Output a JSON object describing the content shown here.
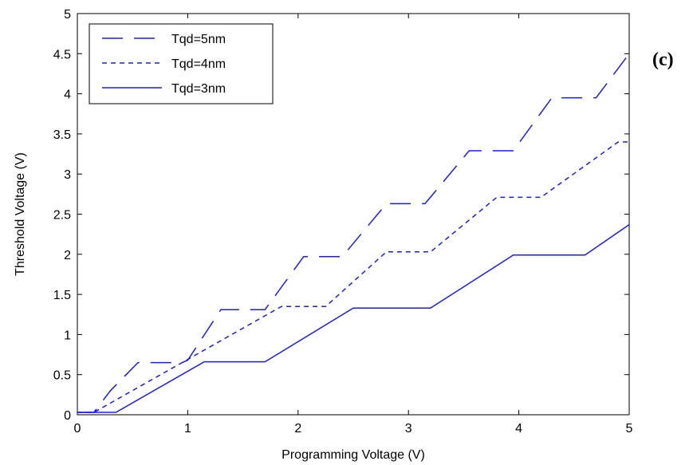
{
  "panel_label": "(c)",
  "chart_data": {
    "type": "line",
    "title": "",
    "xlabel": "Programming Voltage (V)",
    "ylabel": "Threshold Voltage (V)",
    "xlim": [
      0,
      5
    ],
    "ylim": [
      0,
      5
    ],
    "xticks": [
      0,
      1,
      2,
      3,
      4,
      5
    ],
    "yticks": [
      0,
      0.5,
      1,
      1.5,
      2,
      2.5,
      3,
      3.5,
      4,
      4.5,
      5
    ],
    "ytick_labels": [
      "0",
      "0.5",
      "1",
      "1.5",
      "2",
      "2.5",
      "3",
      "3.5",
      "4",
      "4.5",
      "5"
    ],
    "grid": false,
    "legend_position": "top-left",
    "line_color": "#1a1aff",
    "series": [
      {
        "name": "Tqd=5nm",
        "style": "long-dash",
        "x": [
          0,
          0.15,
          0.3,
          0.55,
          0.6,
          0.95,
          1.0,
          1.3,
          1.7,
          2.05,
          2.4,
          2.8,
          3.15,
          3.55,
          3.95,
          4.3,
          4.7,
          5.0
        ],
        "y": [
          0.03,
          0.03,
          0.3,
          0.65,
          0.65,
          0.65,
          0.68,
          1.31,
          1.31,
          1.97,
          1.97,
          2.63,
          2.63,
          3.29,
          3.29,
          3.95,
          3.95,
          4.5
        ]
      },
      {
        "name": "Tqd=4nm",
        "style": "short-dash",
        "x": [
          0,
          0.15,
          1.85,
          2.25,
          2.8,
          3.2,
          3.8,
          4.2,
          4.9,
          5.0
        ],
        "y": [
          0.03,
          0.03,
          1.35,
          1.35,
          2.03,
          2.03,
          2.71,
          2.71,
          3.4,
          3.4
        ]
      },
      {
        "name": "Tqd=3nm",
        "style": "solid",
        "x": [
          0,
          0.35,
          1.15,
          1.7,
          2.5,
          3.2,
          3.95,
          4.6,
          5.0
        ],
        "y": [
          0.03,
          0.03,
          0.66,
          0.66,
          1.33,
          1.33,
          1.99,
          1.99,
          2.37
        ]
      }
    ]
  }
}
